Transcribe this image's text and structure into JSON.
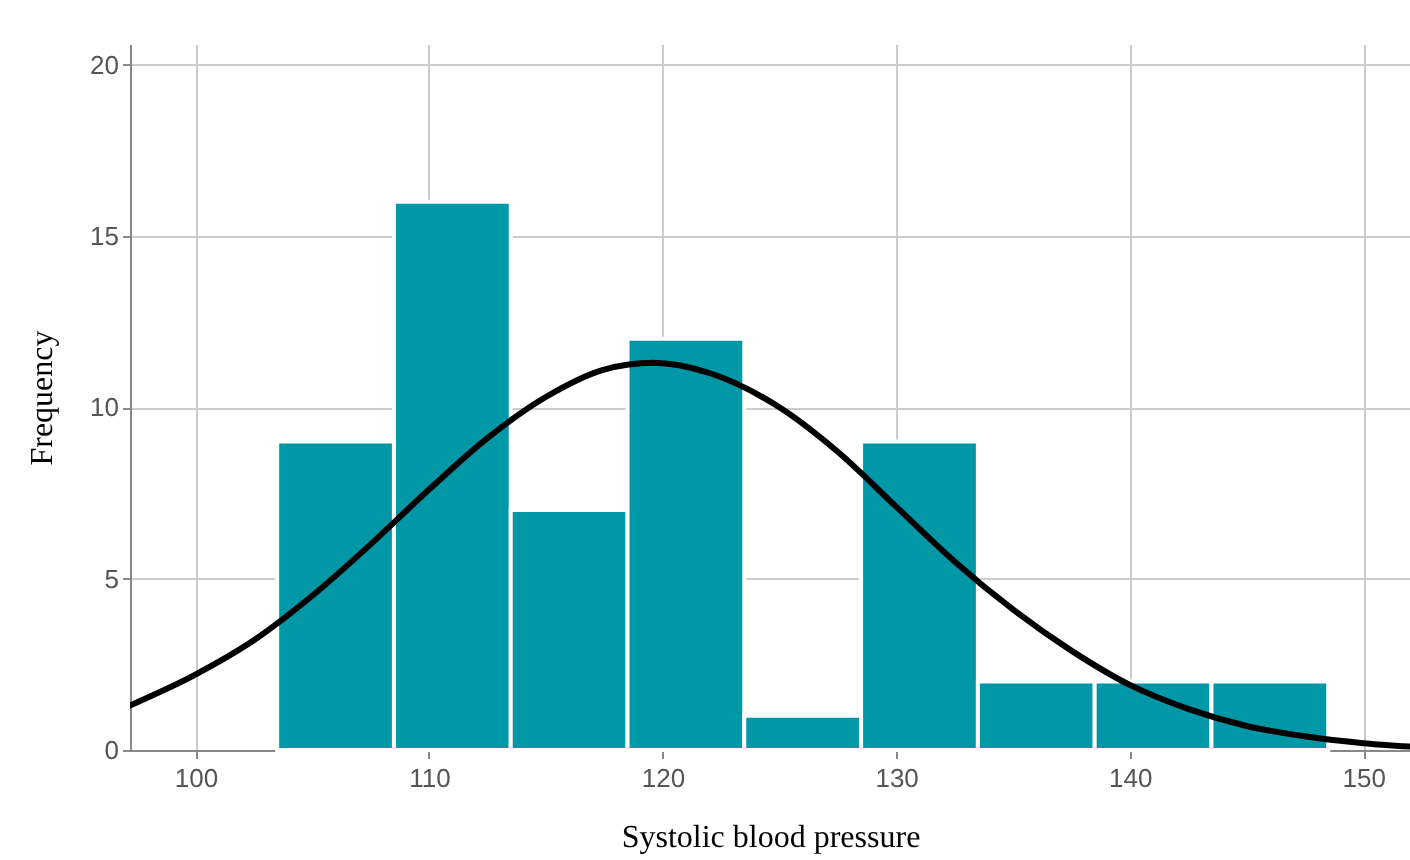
{
  "chart_data": {
    "type": "histogram",
    "xlabel": "Systolic blood pressure",
    "ylabel": "Frequency",
    "bins": [
      103.5,
      108.5,
      113.5,
      118.5,
      123.5,
      128.5,
      133.5,
      138.5,
      143.5,
      148.5
    ],
    "values": [
      9,
      16,
      7,
      12,
      1,
      9,
      2,
      2,
      2
    ],
    "color": "#0097a7",
    "series": [
      {
        "type": "line",
        "color": "#000000",
        "x": [
          97.2,
          100,
          102.5,
          105,
          107.5,
          110,
          112.5,
          115,
          117.5,
          119.6,
          122,
          125,
          127.5,
          130,
          132.5,
          135,
          137.5,
          140,
          142.5,
          145,
          147.5,
          150,
          152
        ],
        "values": [
          1.3,
          2.2,
          3.2,
          4.5,
          6.0,
          7.6,
          9.1,
          10.3,
          11.1,
          11.3,
          11.0,
          10.0,
          8.7,
          7.1,
          5.5,
          4.1,
          2.9,
          1.9,
          1.2,
          0.7,
          0.4,
          0.2,
          0.1
        ]
      }
    ],
    "xlim": [
      97.2,
      152
    ],
    "xticks": [
      100,
      110,
      120,
      130,
      140,
      150
    ],
    "ylim": [
      0,
      20.6
    ],
    "yticks": [
      0,
      5,
      10,
      15,
      20
    ],
    "grid": true,
    "marker": "none",
    "line_style": "solid"
  }
}
